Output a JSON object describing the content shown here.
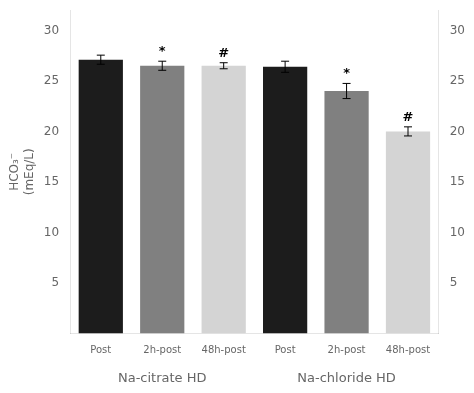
{
  "chart_data": {
    "type": "bar",
    "categories": [
      "Post",
      "2h-post",
      "48h-post",
      "Post",
      "2h-post",
      "48h-post"
    ],
    "groups": [
      "Na-citrate HD",
      "Na-chloride HD"
    ],
    "values": [
      27.1,
      26.5,
      26.5,
      26.4,
      24.0,
      20.0
    ],
    "errors": [
      0.45,
      0.45,
      0.3,
      0.55,
      0.75,
      0.45
    ],
    "colors": [
      "#1c1c1c",
      "#808080",
      "#d4d4d4",
      "#1c1c1c",
      "#808080",
      "#d4d4d4"
    ],
    "annotations": [
      null,
      "*",
      "#",
      null,
      "*",
      "#"
    ],
    "ylabel": [
      "HCO₃⁻",
      "(mEq/L)"
    ],
    "ylim": [
      0,
      32
    ],
    "yticks": [
      5,
      10,
      15,
      20,
      25,
      30
    ],
    "y2lim": [
      0,
      32
    ],
    "y2ticks": [
      5,
      10,
      15,
      20,
      25,
      30
    ],
    "grid": false
  }
}
